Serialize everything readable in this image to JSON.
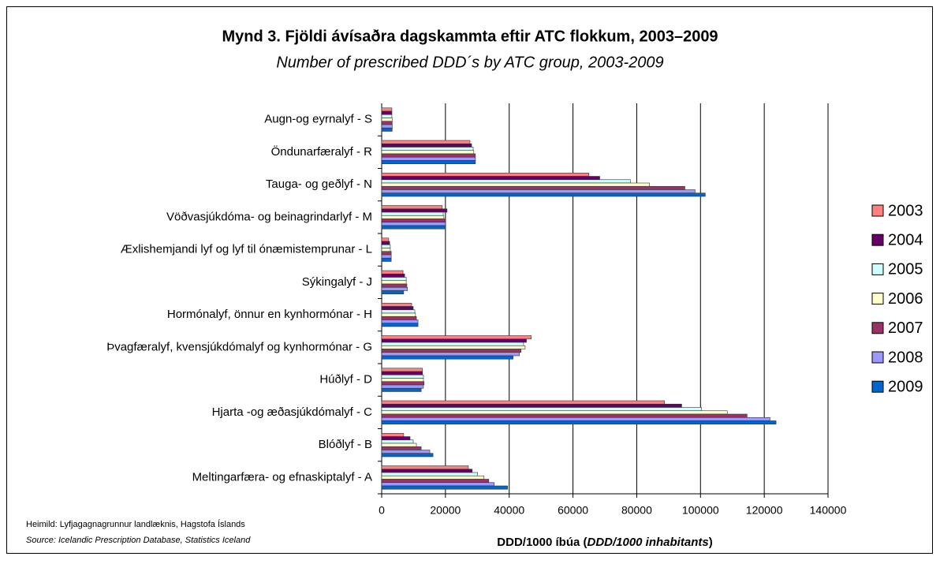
{
  "chart_data": {
    "type": "barh",
    "title": "Mynd 3. Fjöldi ávísaðra dagskammta eftir ATC flokkum, 2003–2009",
    "subtitle": "Number of prescribed DDD´s by ATC group, 2003-2009",
    "xlabel_parts": [
      "DDD/1000 íbúa (",
      "DDD/1000 inhabitants",
      ")"
    ],
    "notes": [
      "Heimild: Lyfjagagnagrunnur landlæknis, Hagstofa Íslands",
      "Source: Icelandic Prescription Database, Statistics Iceland"
    ],
    "categories": [
      "Augn-og eyrnalyf - S",
      "Öndunarfæralyf - R",
      "Tauga- og geðlyf - N",
      "Vöðvasjúkdóma- og beinagrindarlyf - M",
      "Æxlishemjandi lyf og lyf til ónæmistemprunar - L",
      "Sýkingalyf - J",
      "Hormónalyf, önnur en kynhormónar - H",
      "Þvagfæralyf, kvensjúkdómalyf og kynhormónar - G",
      "Húðlyf - D",
      "Hjarta -og æðasjúkdómalyf - C",
      "Blóðlyf - B",
      "Meltingarfæra- og efnaskiptalyf - A"
    ],
    "series": [
      {
        "name": "2003",
        "color": "#ff8080",
        "values": [
          3200,
          27700,
          65000,
          19000,
          2200,
          6700,
          9400,
          46900,
          12800,
          88700,
          6900,
          27200
        ]
      },
      {
        "name": "2004",
        "color": "#660066",
        "values": [
          3200,
          28200,
          68400,
          20500,
          2500,
          7200,
          9900,
          45400,
          12800,
          94100,
          8900,
          28400
        ]
      },
      {
        "name": "2005",
        "color": "#ccffff",
        "values": [
          3200,
          28700,
          78000,
          19300,
          2700,
          7700,
          10400,
          44500,
          13100,
          100300,
          9900,
          30100
        ]
      },
      {
        "name": "2006",
        "color": "#ffffcc",
        "values": [
          3300,
          28900,
          84000,
          19500,
          2700,
          7700,
          10600,
          45000,
          13100,
          108400,
          10900,
          32100
        ]
      },
      {
        "name": "2007",
        "color": "#993366",
        "values": [
          3300,
          29400,
          95100,
          20000,
          3000,
          7900,
          10900,
          43700,
          13300,
          114600,
          12400,
          33600
        ]
      },
      {
        "name": "2008",
        "color": "#9999ff",
        "values": [
          3300,
          29400,
          98300,
          20000,
          3000,
          8100,
          11400,
          43200,
          13100,
          121800,
          15100,
          35300
        ]
      },
      {
        "name": "2009",
        "color": "#0066cc",
        "values": [
          3300,
          29400,
          101500,
          20000,
          3000,
          6900,
          11400,
          41200,
          12400,
          123700,
          16100,
          39500
        ]
      }
    ],
    "xlim": [
      0,
      140000
    ],
    "xticks": [
      0,
      20000,
      40000,
      60000,
      80000,
      100000,
      120000,
      140000
    ],
    "grid": true
  }
}
